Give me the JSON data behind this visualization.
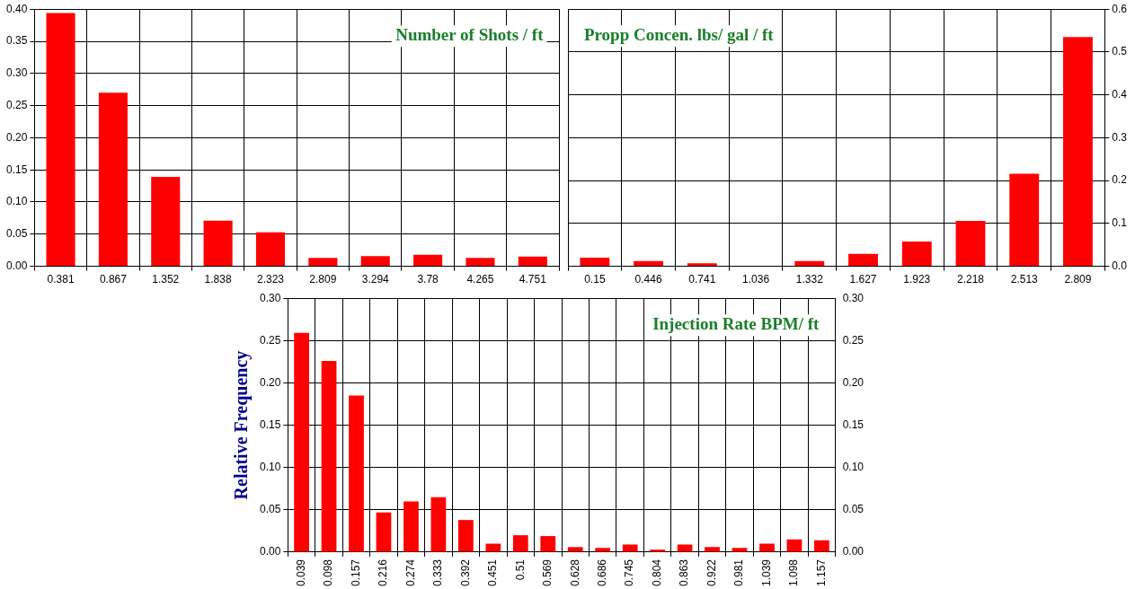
{
  "chart_data": [
    {
      "type": "bar",
      "title": "Number of Shots / ft",
      "categories": [
        "0.381",
        "0.867",
        "1.352",
        "1.838",
        "2.323",
        "2.809",
        "3.294",
        "3.78",
        "4.265",
        "4.751"
      ],
      "values": [
        0.394,
        0.27,
        0.139,
        0.071,
        0.053,
        0.013,
        0.016,
        0.018,
        0.013,
        0.015
      ],
      "color": "#ff0000",
      "ylim": [
        0,
        0.4
      ],
      "yticks": [
        {
          "value": 0,
          "label": "0.00"
        },
        {
          "value": 0.05,
          "label": "0.05"
        },
        {
          "value": 0.1,
          "label": "0.10"
        },
        {
          "value": 0.15,
          "label": "0.15"
        },
        {
          "value": 0.2,
          "label": "0.20"
        },
        {
          "value": 0.25,
          "label": "0.25"
        },
        {
          "value": 0.3,
          "label": "0.30"
        },
        {
          "value": 0.35,
          "label": "0.35"
        },
        {
          "value": 0.4,
          "label": "0.40"
        }
      ],
      "grid": true
    },
    {
      "type": "bar",
      "title": "Propp Concen. lbs/ gal / ft",
      "categories": [
        "0.15",
        "0.446",
        "0.741",
        "1.036",
        "1.332",
        "1.627",
        "1.923",
        "2.218",
        "2.513",
        "2.809"
      ],
      "series": [
        {
          "color": "#ff0000",
          "axis": "y2",
          "values": [
            0.02,
            0.012,
            0.007,
            0,
            0.012,
            0.029,
            0.058,
            0.106,
            0.216,
            0.535
          ]
        }
      ],
      "y2lim": [
        0,
        0.6
      ],
      "y2ticks": [
        {
          "value": 0,
          "label": "0.0"
        },
        0.1,
        0.2,
        0.3,
        0.4,
        0.5,
        0.6
      ],
      "grid": true
    },
    {
      "type": "bar",
      "title": "Injection Rate BPM/ ft",
      "ylabel": "Relative Frequency",
      "categories": [
        "0.039",
        "0.098",
        "0.157",
        "0.216",
        "0.274",
        "0.333",
        "0.392",
        "0.451",
        "0.51",
        "0.569",
        "0.628",
        "0.686",
        "0.745",
        "0.804",
        "0.863",
        "0.922",
        "0.981",
        "1.039",
        "1.098",
        "1.157"
      ],
      "values": [
        0.259,
        0.226,
        0.185,
        0.047,
        0.06,
        0.065,
        0.038,
        0.01,
        0.02,
        0.019,
        0.006,
        0.005,
        0.009,
        0.003,
        0.009,
        0.006,
        0.005,
        0.01,
        0.015,
        0.014
      ],
      "color": "#ff0000",
      "ylim": [
        0,
        0.3
      ],
      "yticks": [
        {
          "value": 0,
          "label": "0.00"
        },
        {
          "value": 0.05,
          "label": "0.05"
        },
        {
          "value": 0.1,
          "label": "0.10"
        },
        {
          "value": 0.15,
          "label": "0.15"
        },
        {
          "value": 0.2,
          "label": "0.20"
        },
        {
          "value": 0.25,
          "label": "0.25"
        },
        {
          "value": 0.3,
          "label": "0.30"
        }
      ],
      "y2lim": [
        0,
        0.3
      ],
      "y2ticks": [
        {
          "value": 0,
          "label": "0.00"
        },
        {
          "value": 0.05,
          "label": "0.05"
        },
        {
          "value": 0.1,
          "label": "0.10"
        },
        {
          "value": 0.15,
          "label": "0.15"
        },
        {
          "value": 0.2,
          "label": "0.20"
        },
        {
          "value": 0.25,
          "label": "0.25"
        },
        {
          "value": 0.3,
          "label": "0.30"
        }
      ],
      "grid": true
    }
  ]
}
